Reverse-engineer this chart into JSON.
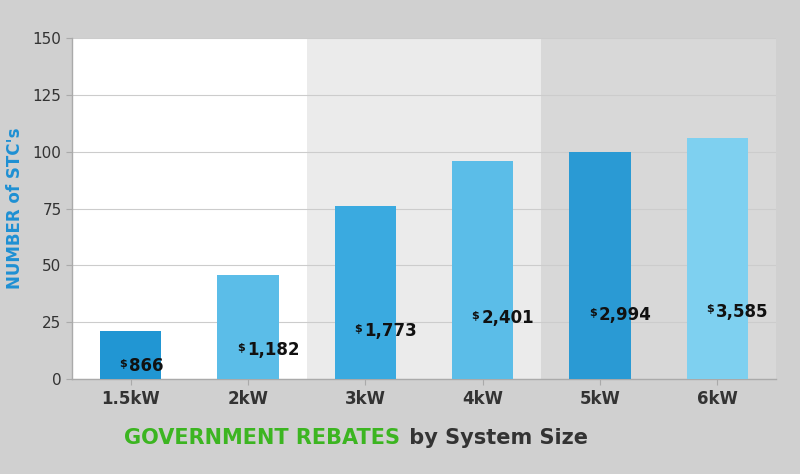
{
  "categories": [
    "1.5kW",
    "2kW",
    "3kW",
    "4kW",
    "5kW",
    "6kW"
  ],
  "values": [
    21,
    46,
    76,
    96,
    100,
    106
  ],
  "labels": [
    "$866",
    "$1,182",
    "$1,773",
    "$2,401",
    "$2,994",
    "$3,585"
  ],
  "bar_colors": [
    "#2196d3",
    "#5bbde8",
    "#3aaae0",
    "#5bbde8",
    "#2a9ad4",
    "#7ed0f0"
  ],
  "ylim": [
    0,
    150
  ],
  "yticks": [
    0,
    25,
    50,
    75,
    100,
    125,
    150
  ],
  "ylabel": "NUMBER of STC's",
  "ylabel_color": "#1e90d4",
  "bg_zone1": "#ffffff",
  "bg_zone2": "#ebebeb",
  "bg_zone3": "#d8d8d8",
  "outer_bg": "#d0d0d0",
  "title_green": "GOVERNMENT REBATES",
  "title_black": " by System Size",
  "title_green_color": "#3cb521",
  "title_black_color": "#333333",
  "title_fontsize": 15,
  "ylabel_fontsize": 12,
  "tick_fontsize": 11,
  "xtick_fontsize": 12
}
